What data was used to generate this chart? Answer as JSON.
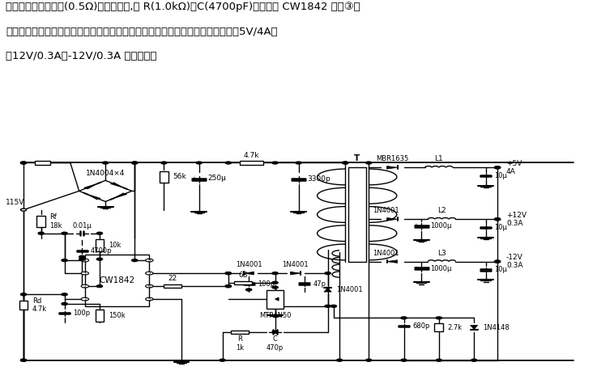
{
  "title_line1": "电流由源极串联电阻(0.5Ω)传感和监测,经 R(1.0kΩ)、C(4700pF)滤波送入 CW1842 的第③脚",
  "title_line2": "作为电流控制信号。高频功率变压器的三组次级及各自的整流滤波电路分别构成＋5V/4A、",
  "title_line3": "＋12V/0.3A、-12V/0.3A 三组输出。",
  "bg_color": "#ffffff",
  "line_color": "#000000",
  "text_color": "#000000",
  "title_fontsize": 9.5,
  "circuit_fontsize": 6.5
}
